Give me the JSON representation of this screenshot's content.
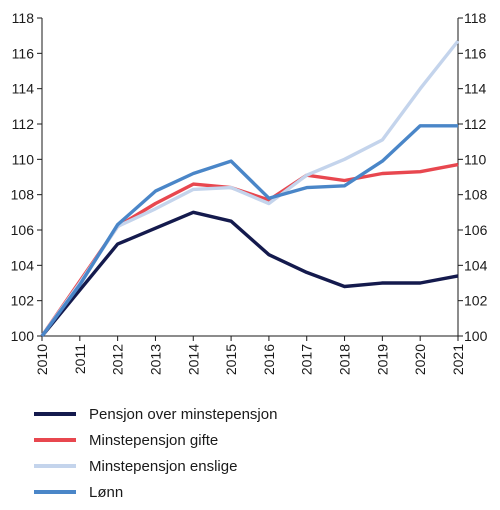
{
  "chart_data": {
    "type": "line",
    "x": [
      "2010",
      "2011",
      "2012",
      "2013",
      "2014",
      "2015",
      "2016",
      "2017",
      "2018",
      "2019",
      "2020",
      "2021"
    ],
    "ylim": [
      100,
      118
    ],
    "yticks": [
      100,
      102,
      104,
      106,
      108,
      110,
      112,
      114,
      116,
      118
    ],
    "y_axis_both_sides": true,
    "grid": false,
    "legend_position": "bottom",
    "series": [
      {
        "name": "Pensjon over minstepensjon",
        "color": "#141a4d",
        "values": [
          100,
          102.6,
          105.2,
          106.1,
          107.0,
          106.5,
          104.6,
          103.6,
          102.8,
          103.0,
          103.0,
          103.4
        ]
      },
      {
        "name": "Minstepensjon gifte",
        "color": "#e8474f",
        "values": [
          100,
          103.1,
          106.2,
          107.5,
          108.6,
          108.4,
          107.7,
          109.1,
          108.8,
          109.2,
          109.3,
          109.7
        ]
      },
      {
        "name": "Minstepensjon enslige",
        "color": "#c4d4ec",
        "values": [
          100,
          103.0,
          106.2,
          107.2,
          108.3,
          108.4,
          107.5,
          109.1,
          110.0,
          111.1,
          114.0,
          116.7
        ]
      },
      {
        "name": "Lønn",
        "color": "#4a86c8",
        "values": [
          100,
          102.9,
          106.3,
          108.2,
          109.2,
          109.9,
          107.8,
          108.4,
          108.5,
          109.9,
          111.9,
          111.9
        ]
      }
    ]
  }
}
